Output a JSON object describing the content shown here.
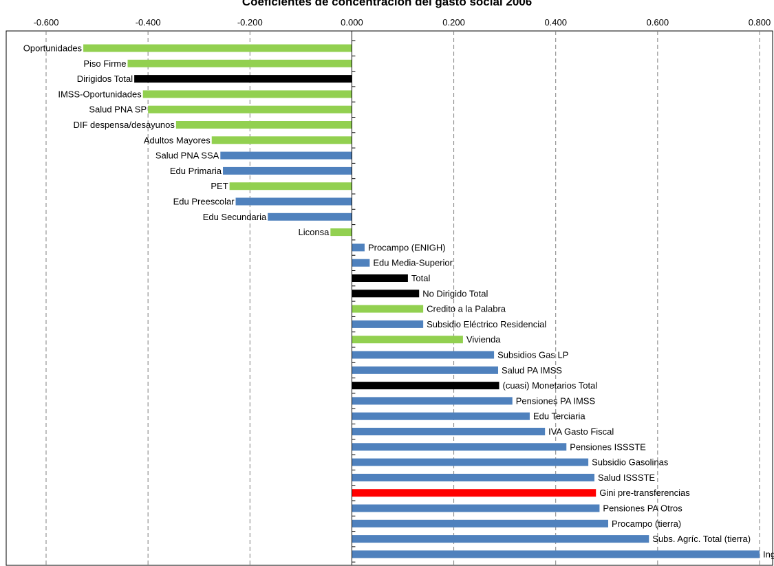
{
  "chart_data": {
    "type": "bar",
    "orientation": "horizontal",
    "title": "Coeficientes de concentración del gasto social 2006",
    "xlim": [
      -0.6,
      0.8
    ],
    "x_ticks": [
      "-0.600",
      "-0.400",
      "-0.200",
      "0.000",
      "0.200",
      "0.400",
      "0.600",
      "0.800"
    ],
    "x_tick_values": [
      -0.6,
      -0.4,
      -0.2,
      0.0,
      0.2,
      0.4,
      0.6,
      0.8
    ],
    "grid": "vertical dashed",
    "colors": {
      "green": "#92d050",
      "blue": "#4f81bd",
      "black": "#000000",
      "red": "#ff0000"
    },
    "bars": [
      {
        "label": "Oportunidades",
        "value": -0.527,
        "color": "green"
      },
      {
        "label": "Piso Firme",
        "value": -0.44,
        "color": "green"
      },
      {
        "label": "Dirigidos Total",
        "value": -0.427,
        "color": "black"
      },
      {
        "label": "IMSS-Oportunidades",
        "value": -0.41,
        "color": "green"
      },
      {
        "label": "Salud PNA SP",
        "value": -0.4,
        "color": "green"
      },
      {
        "label": "DIF despensa/desayunos",
        "value": -0.345,
        "color": "green"
      },
      {
        "label": "Adultos Mayores",
        "value": -0.275,
        "color": "green"
      },
      {
        "label": "Salud PNA SSA",
        "value": -0.258,
        "color": "blue"
      },
      {
        "label": "Edu Primaria",
        "value": -0.253,
        "color": "blue"
      },
      {
        "label": "PET",
        "value": -0.24,
        "color": "green"
      },
      {
        "label": "Edu Preescolar",
        "value": -0.228,
        "color": "blue"
      },
      {
        "label": "Edu Secundaria",
        "value": -0.165,
        "color": "blue"
      },
      {
        "label": "Liconsa",
        "value": -0.042,
        "color": "green"
      },
      {
        "label": "Procampo (ENIGH)",
        "value": 0.025,
        "color": "blue"
      },
      {
        "label": "Edu Media-Superior",
        "value": 0.035,
        "color": "blue"
      },
      {
        "label": "Total",
        "value": 0.11,
        "color": "black"
      },
      {
        "label": "No Dirigido Total",
        "value": 0.132,
        "color": "black"
      },
      {
        "label": "Credito a la Palabra",
        "value": 0.14,
        "color": "green"
      },
      {
        "label": "Subsidio Eléctrico Residencial",
        "value": 0.14,
        "color": "blue"
      },
      {
        "label": "Vivienda",
        "value": 0.218,
        "color": "green"
      },
      {
        "label": "Subsidios Gas LP",
        "value": 0.279,
        "color": "blue"
      },
      {
        "label": "Salud PA IMSS",
        "value": 0.287,
        "color": "blue"
      },
      {
        "label": "(cuasi) Monetarios Total",
        "value": 0.289,
        "color": "black"
      },
      {
        "label": "Pensiones PA IMSS",
        "value": 0.315,
        "color": "blue"
      },
      {
        "label": "Edu Terciaria",
        "value": 0.349,
        "color": "blue"
      },
      {
        "label": "IVA Gasto Fiscal",
        "value": 0.379,
        "color": "blue"
      },
      {
        "label": "Pensiones ISSSTE",
        "value": 0.421,
        "color": "blue"
      },
      {
        "label": "Subsidio Gasolinas",
        "value": 0.464,
        "color": "blue"
      },
      {
        "label": "Salud ISSSTE",
        "value": 0.476,
        "color": "blue"
      },
      {
        "label": "Gini pre-transferencias",
        "value": 0.479,
        "color": "red"
      },
      {
        "label": "Pensiones PA Otros",
        "value": 0.486,
        "color": "blue"
      },
      {
        "label": "Procampo (tierra)",
        "value": 0.503,
        "color": "blue"
      },
      {
        "label": "Subs. Agríc. Total (tierra)",
        "value": 0.583,
        "color": "blue"
      },
      {
        "label": "Ingreso Objetivo (tierra)",
        "value": 0.8,
        "color": "blue"
      }
    ]
  }
}
